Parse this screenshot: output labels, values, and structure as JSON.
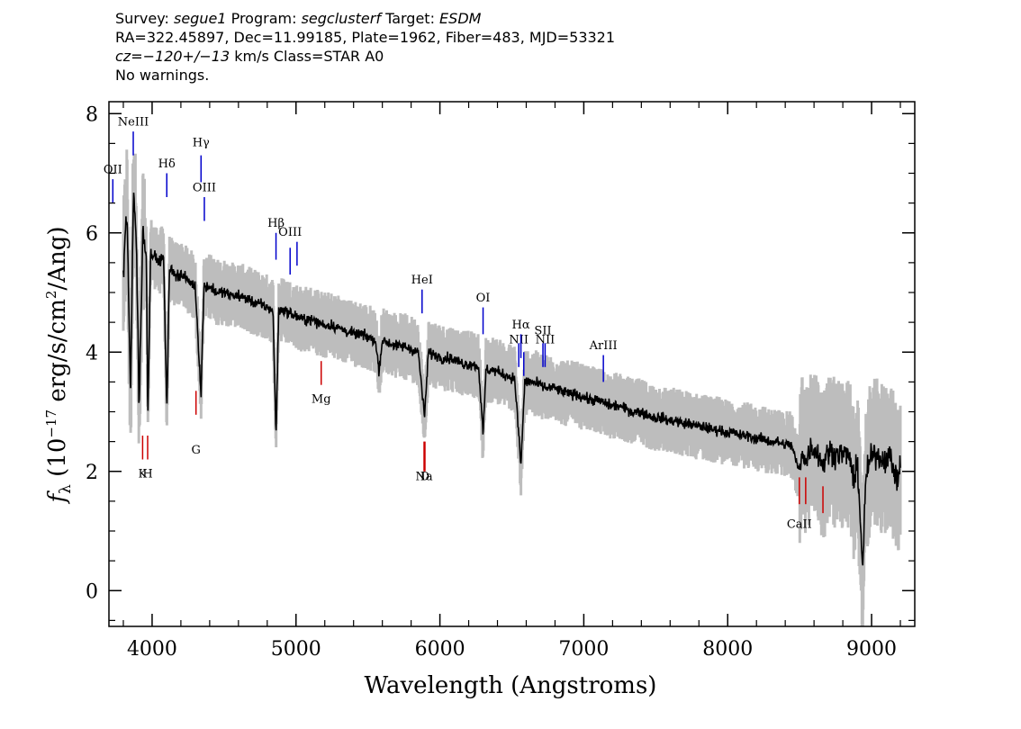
{
  "header": {
    "line1": {
      "survey_label": "Survey:",
      "survey_value": "segue1",
      "program_label": "Program:",
      "program_value": "segclusterf",
      "target_label": "Target:",
      "target_value": "ESDM"
    },
    "line2": "RA=322.45897, Dec=11.99185, Plate=1962, Fiber=483, MJD=53321",
    "line3": {
      "cz_label": "cz=",
      "cz_value": "−120+/−13",
      "rest": " km/s Class=STAR A0"
    },
    "line4": "No warnings."
  },
  "chart_data": {
    "type": "line",
    "xlabel": "Wavelength (Angstroms)",
    "ylabel_parts": {
      "symbol": "f",
      "sub": "λ",
      "open": " (10",
      "exp1": "−17",
      "mid": " erg/s/cm",
      "exp2": "2",
      "close": "/Ang)"
    },
    "xlim": [
      3700,
      9300
    ],
    "ylim": [
      -0.6,
      8.2
    ],
    "xticks": [
      4000,
      5000,
      6000,
      7000,
      8000,
      9000
    ],
    "yticks": [
      0,
      2,
      4,
      6,
      8
    ],
    "colors": {
      "spectrum": "#000000",
      "error": "#bdbdbd",
      "emission": "#0000cc",
      "absorption": "#cc0000"
    },
    "spectrum_points": [
      [
        3800,
        5.3
      ],
      [
        3825,
        6.4
      ],
      [
        3850,
        3.2
      ],
      [
        3870,
        6.8
      ],
      [
        3890,
        5.9
      ],
      [
        3910,
        3.1
      ],
      [
        3935,
        6.0
      ],
      [
        3960,
        5.6
      ],
      [
        3970,
        2.9
      ],
      [
        3990,
        5.7
      ],
      [
        4020,
        5.6
      ],
      [
        4050,
        5.5
      ],
      [
        4080,
        5.6
      ],
      [
        4102,
        3.0
      ],
      [
        4120,
        5.4
      ],
      [
        4160,
        5.3
      ],
      [
        4200,
        5.3
      ],
      [
        4250,
        5.2
      ],
      [
        4300,
        5.1
      ],
      [
        4340,
        3.3
      ],
      [
        4360,
        5.1
      ],
      [
        4400,
        5.1
      ],
      [
        4450,
        5.0
      ],
      [
        4500,
        5.0
      ],
      [
        4550,
        4.95
      ],
      [
        4600,
        4.95
      ],
      [
        4650,
        4.9
      ],
      [
        4700,
        4.85
      ],
      [
        4750,
        4.8
      ],
      [
        4800,
        4.75
      ],
      [
        4840,
        4.7
      ],
      [
        4861,
        2.6
      ],
      [
        4880,
        4.7
      ],
      [
        4920,
        4.7
      ],
      [
        4960,
        4.65
      ],
      [
        5000,
        4.6
      ],
      [
        5050,
        4.55
      ],
      [
        5100,
        4.55
      ],
      [
        5150,
        4.5
      ],
      [
        5200,
        4.45
      ],
      [
        5250,
        4.45
      ],
      [
        5300,
        4.4
      ],
      [
        5350,
        4.35
      ],
      [
        5400,
        4.3
      ],
      [
        5450,
        4.3
      ],
      [
        5500,
        4.25
      ],
      [
        5550,
        4.2
      ],
      [
        5577,
        3.7
      ],
      [
        5600,
        4.2
      ],
      [
        5650,
        4.15
      ],
      [
        5700,
        4.1
      ],
      [
        5750,
        4.1
      ],
      [
        5800,
        4.05
      ],
      [
        5850,
        4.0
      ],
      [
        5893,
        2.9
      ],
      [
        5920,
        4.0
      ],
      [
        5970,
        3.95
      ],
      [
        6020,
        3.9
      ],
      [
        6070,
        3.9
      ],
      [
        6120,
        3.85
      ],
      [
        6170,
        3.8
      ],
      [
        6220,
        3.8
      ],
      [
        6270,
        3.75
      ],
      [
        6300,
        2.6
      ],
      [
        6320,
        3.7
      ],
      [
        6370,
        3.7
      ],
      [
        6420,
        3.65
      ],
      [
        6470,
        3.6
      ],
      [
        6520,
        3.55
      ],
      [
        6563,
        2.1
      ],
      [
        6590,
        3.5
      ],
      [
        6640,
        3.5
      ],
      [
        6690,
        3.45
      ],
      [
        6740,
        3.4
      ],
      [
        6790,
        3.4
      ],
      [
        6840,
        3.35
      ],
      [
        6890,
        3.3
      ],
      [
        6940,
        3.3
      ],
      [
        6990,
        3.25
      ],
      [
        7040,
        3.2
      ],
      [
        7090,
        3.2
      ],
      [
        7140,
        3.15
      ],
      [
        7190,
        3.1
      ],
      [
        7240,
        3.1
      ],
      [
        7290,
        3.05
      ],
      [
        7340,
        3.0
      ],
      [
        7390,
        3.0
      ],
      [
        7440,
        2.95
      ],
      [
        7490,
        2.9
      ],
      [
        7540,
        2.9
      ],
      [
        7590,
        2.85
      ],
      [
        7640,
        2.85
      ],
      [
        7690,
        2.8
      ],
      [
        7740,
        2.8
      ],
      [
        7790,
        2.75
      ],
      [
        7840,
        2.75
      ],
      [
        7890,
        2.7
      ],
      [
        7940,
        2.7
      ],
      [
        7990,
        2.65
      ],
      [
        8040,
        2.65
      ],
      [
        8090,
        2.6
      ],
      [
        8140,
        2.6
      ],
      [
        8190,
        2.55
      ],
      [
        8240,
        2.55
      ],
      [
        8290,
        2.5
      ],
      [
        8340,
        2.5
      ],
      [
        8390,
        2.45
      ],
      [
        8440,
        2.45
      ],
      [
        8498,
        2.0
      ],
      [
        8520,
        2.4
      ],
      [
        8542,
        2.1
      ],
      [
        8570,
        2.4
      ],
      [
        8620,
        2.35
      ],
      [
        8662,
        2.1
      ],
      [
        8700,
        2.35
      ],
      [
        8750,
        2.3
      ],
      [
        8800,
        2.3
      ],
      [
        8850,
        2.25
      ],
      [
        8880,
        1.7
      ],
      [
        8900,
        2.3
      ],
      [
        8920,
        1.2
      ],
      [
        8940,
        0.4
      ],
      [
        8960,
        1.9
      ],
      [
        8990,
        2.2
      ],
      [
        9030,
        2.3
      ],
      [
        9080,
        2.2
      ],
      [
        9130,
        2.25
      ],
      [
        9180,
        1.8
      ],
      [
        9200,
        2.2
      ]
    ],
    "emission_lines": [
      {
        "label": "OII",
        "x": 3727,
        "y0": 6.5,
        "y1": 6.9,
        "label_y": 7.0
      },
      {
        "label": "NeIII",
        "x": 3869,
        "y0": 7.3,
        "y1": 7.7,
        "label_y": 7.8
      },
      {
        "label": "Hδ",
        "x": 4102,
        "y0": 6.6,
        "y1": 7.0,
        "label_y": 7.1
      },
      {
        "label": "Hγ",
        "x": 4340,
        "y0": 6.85,
        "y1": 7.3,
        "label_y": 7.45
      },
      {
        "label": "OIII",
        "x": 4363,
        "y0": 6.2,
        "y1": 6.6,
        "label_y": 6.7
      },
      {
        "label": "Hβ",
        "x": 4861,
        "y0": 5.55,
        "y1": 6.0,
        "label_y": 6.1
      },
      {
        "label": "OIII",
        "x": 4959,
        "y0": 5.3,
        "y1": 5.75,
        "label_y": 5.95
      },
      {
        "label": "",
        "x": 5007,
        "y0": 5.45,
        "y1": 5.85,
        "label_y": 5.95
      },
      {
        "label": "HeI",
        "x": 5876,
        "y0": 4.65,
        "y1": 5.05,
        "label_y": 5.15
      },
      {
        "label": "OI",
        "x": 6300,
        "y0": 4.3,
        "y1": 4.75,
        "label_y": 4.85
      },
      {
        "label": "NII",
        "x": 6548,
        "y0": 3.75,
        "y1": 4.15,
        "label_y": 4.15
      },
      {
        "label": "Hα",
        "x": 6563,
        "y0": 3.9,
        "y1": 4.3,
        "label_y": 4.4
      },
      {
        "label": "",
        "x": 6583,
        "y0": 3.6,
        "y1": 4.0,
        "label_y": 4.15
      },
      {
        "label": "SII",
        "x": 6716,
        "y0": 3.75,
        "y1": 4.15,
        "label_y": 4.3
      },
      {
        "label": "NII",
        "x": 6731,
        "y0": 3.75,
        "y1": 4.15,
        "label_y": 4.15
      },
      {
        "label": "ArIII",
        "x": 7136,
        "y0": 3.5,
        "y1": 3.95,
        "label_y": 4.05
      }
    ],
    "absorption_lines": [
      {
        "label": "K",
        "x": 3934,
        "y0": 2.2,
        "y1": 2.6,
        "label_y": 1.9
      },
      {
        "label": "H",
        "x": 3969,
        "y0": 2.2,
        "y1": 2.6,
        "label_y": 1.9
      },
      {
        "label": "G",
        "x": 4305,
        "y0": 2.95,
        "y1": 3.35,
        "label_y": 2.3
      },
      {
        "label": "Mg",
        "x": 5175,
        "y0": 3.45,
        "y1": 3.85,
        "label_y": 3.15
      },
      {
        "label": "Na",
        "x": 5890,
        "y0": 2.0,
        "y1": 2.5,
        "label_y": 1.85
      },
      {
        "label": "D",
        "x": 5896,
        "y0": 2.0,
        "y1": 2.5,
        "label_y": 1.85
      },
      {
        "label": "CaII",
        "x": 8498,
        "y0": 1.45,
        "y1": 1.9,
        "label_y": 1.05
      },
      {
        "label": "",
        "x": 8542,
        "y0": 1.45,
        "y1": 1.9,
        "label_y": 1.05
      },
      {
        "label": "",
        "x": 8662,
        "y0": 1.3,
        "y1": 1.75,
        "label_y": 1.05
      }
    ]
  }
}
